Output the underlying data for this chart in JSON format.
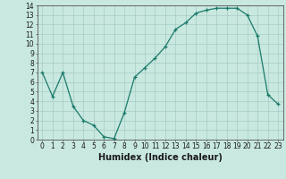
{
  "x": [
    0,
    1,
    2,
    3,
    4,
    5,
    6,
    7,
    8,
    9,
    10,
    11,
    12,
    13,
    14,
    15,
    16,
    17,
    18,
    19,
    20,
    21,
    22,
    23
  ],
  "y": [
    7,
    4.5,
    7,
    3.5,
    2,
    1.5,
    0.3,
    0.1,
    2.8,
    6.5,
    7.5,
    8.5,
    9.7,
    11.5,
    12.2,
    13.2,
    13.5,
    13.7,
    13.7,
    13.7,
    13.0,
    10.8,
    4.7,
    3.7
  ],
  "title": "",
  "xlabel": "Humidex (Indice chaleur)",
  "ylabel": "",
  "xlim": [
    -0.5,
    23.5
  ],
  "ylim": [
    0,
    14
  ],
  "yticks": [
    0,
    1,
    2,
    3,
    4,
    5,
    6,
    7,
    8,
    9,
    10,
    11,
    12,
    13,
    14
  ],
  "xticks": [
    0,
    1,
    2,
    3,
    4,
    5,
    6,
    7,
    8,
    9,
    10,
    11,
    12,
    13,
    14,
    15,
    16,
    17,
    18,
    19,
    20,
    21,
    22,
    23
  ],
  "line_color": "#1a7a6a",
  "marker": "+",
  "bg_color": "#c8e8e0",
  "grid_color": "#a8ccc4",
  "label_color": "#1a1a1a",
  "font_size_ticks": 5.5,
  "font_size_xlabel": 7.0
}
